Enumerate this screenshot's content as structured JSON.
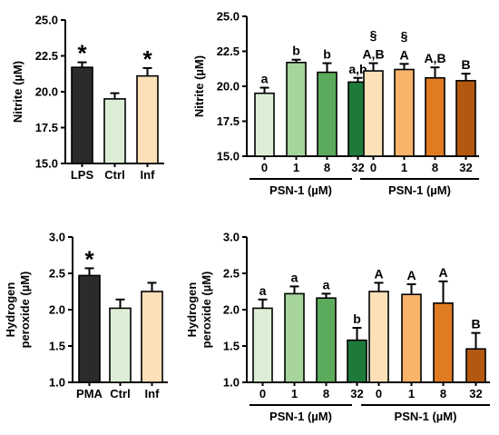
{
  "chart_data": [
    {
      "type": "bar",
      "ylabel": "Nitrite (µM)",
      "ylim": [
        15.0,
        25.0
      ],
      "yticks": [
        "15.0",
        "17.5",
        "20.0",
        "22.5",
        "25.0"
      ],
      "categories": [
        "LPS",
        "Ctrl",
        "Inf"
      ],
      "values": [
        21.7,
        19.5,
        21.1
      ],
      "errors": [
        0.35,
        0.4,
        0.55
      ],
      "colors": [
        "#2b2b2b",
        "#dcefd6",
        "#fde0b8"
      ],
      "annotations": [
        "*",
        "",
        "*"
      ]
    },
    {
      "type": "bar",
      "ylabel": "Nitrite (µM)",
      "ylim": [
        15.0,
        25.0
      ],
      "yticks": [
        "15.0",
        "17.5",
        "20.0",
        "22.5",
        "25.0"
      ],
      "groups": [
        {
          "label": "PSN-1 (µM)",
          "categories": [
            "0",
            "1",
            "8",
            "32"
          ],
          "values": [
            19.5,
            21.7,
            21.0,
            20.3
          ],
          "errors": [
            0.4,
            0.2,
            0.65,
            0.3
          ],
          "colors": [
            "#dcefd6",
            "#a6d49a",
            "#5cab5c",
            "#1d7a3a"
          ],
          "annotations": [
            "a",
            "b",
            "b",
            "a,b"
          ],
          "section_marks": [
            "",
            "",
            "",
            ""
          ]
        },
        {
          "label": "PSN-1 (µM)",
          "categories": [
            "0",
            "1",
            "8",
            "32"
          ],
          "values": [
            21.1,
            21.2,
            20.6,
            20.4
          ],
          "errors": [
            0.55,
            0.4,
            0.75,
            0.5
          ],
          "colors": [
            "#fde0b8",
            "#f7b46a",
            "#e07b22",
            "#b4580f"
          ],
          "annotations": [
            "A,B",
            "A",
            "A,B",
            "B"
          ],
          "section_marks": [
            "§",
            "§",
            "",
            ""
          ]
        }
      ]
    },
    {
      "type": "bar",
      "ylabel": "Hydrogen peroxide (µM)",
      "ylabel_lines": [
        "Hydrogen",
        "peroxide (µM)"
      ],
      "ylim": [
        1.0,
        3.0
      ],
      "yticks": [
        "1.0",
        "1.5",
        "2.0",
        "2.5",
        "3.0"
      ],
      "categories": [
        "PMA",
        "Ctrl",
        "Inf"
      ],
      "values": [
        2.47,
        2.02,
        2.25
      ],
      "errors": [
        0.1,
        0.12,
        0.12
      ],
      "colors": [
        "#2b2b2b",
        "#dcefd6",
        "#fde0b8"
      ],
      "annotations": [
        "*",
        "",
        ""
      ]
    },
    {
      "type": "bar",
      "ylabel": "Hydrogen peroxide (µM)",
      "ylabel_lines": [
        "Hydrogen",
        "peroxide (µM)"
      ],
      "ylim": [
        1.0,
        3.0
      ],
      "yticks": [
        "1.0",
        "1.5",
        "2.0",
        "2.5",
        "3.0"
      ],
      "groups": [
        {
          "label": "PSN-1 (µM)",
          "categories": [
            "0",
            "1",
            "8",
            "32"
          ],
          "values": [
            2.02,
            2.22,
            2.16,
            1.58
          ],
          "errors": [
            0.12,
            0.1,
            0.06,
            0.17
          ],
          "colors": [
            "#dcefd6",
            "#a6d49a",
            "#5cab5c",
            "#1d7a3a"
          ],
          "annotations": [
            "a",
            "a",
            "a",
            "b"
          ],
          "section_marks": [
            "",
            "",
            "",
            ""
          ]
        },
        {
          "label": "PSN-1 (µM)",
          "categories": [
            "0",
            "1",
            "8",
            "32"
          ],
          "values": [
            2.25,
            2.21,
            2.09,
            1.46
          ],
          "errors": [
            0.12,
            0.14,
            0.3,
            0.22
          ],
          "colors": [
            "#fde0b8",
            "#f7b46a",
            "#e07b22",
            "#b4580f"
          ],
          "annotations": [
            "A",
            "A",
            "A",
            "B"
          ],
          "section_marks": [
            "",
            "",
            "",
            ""
          ]
        }
      ]
    }
  ]
}
